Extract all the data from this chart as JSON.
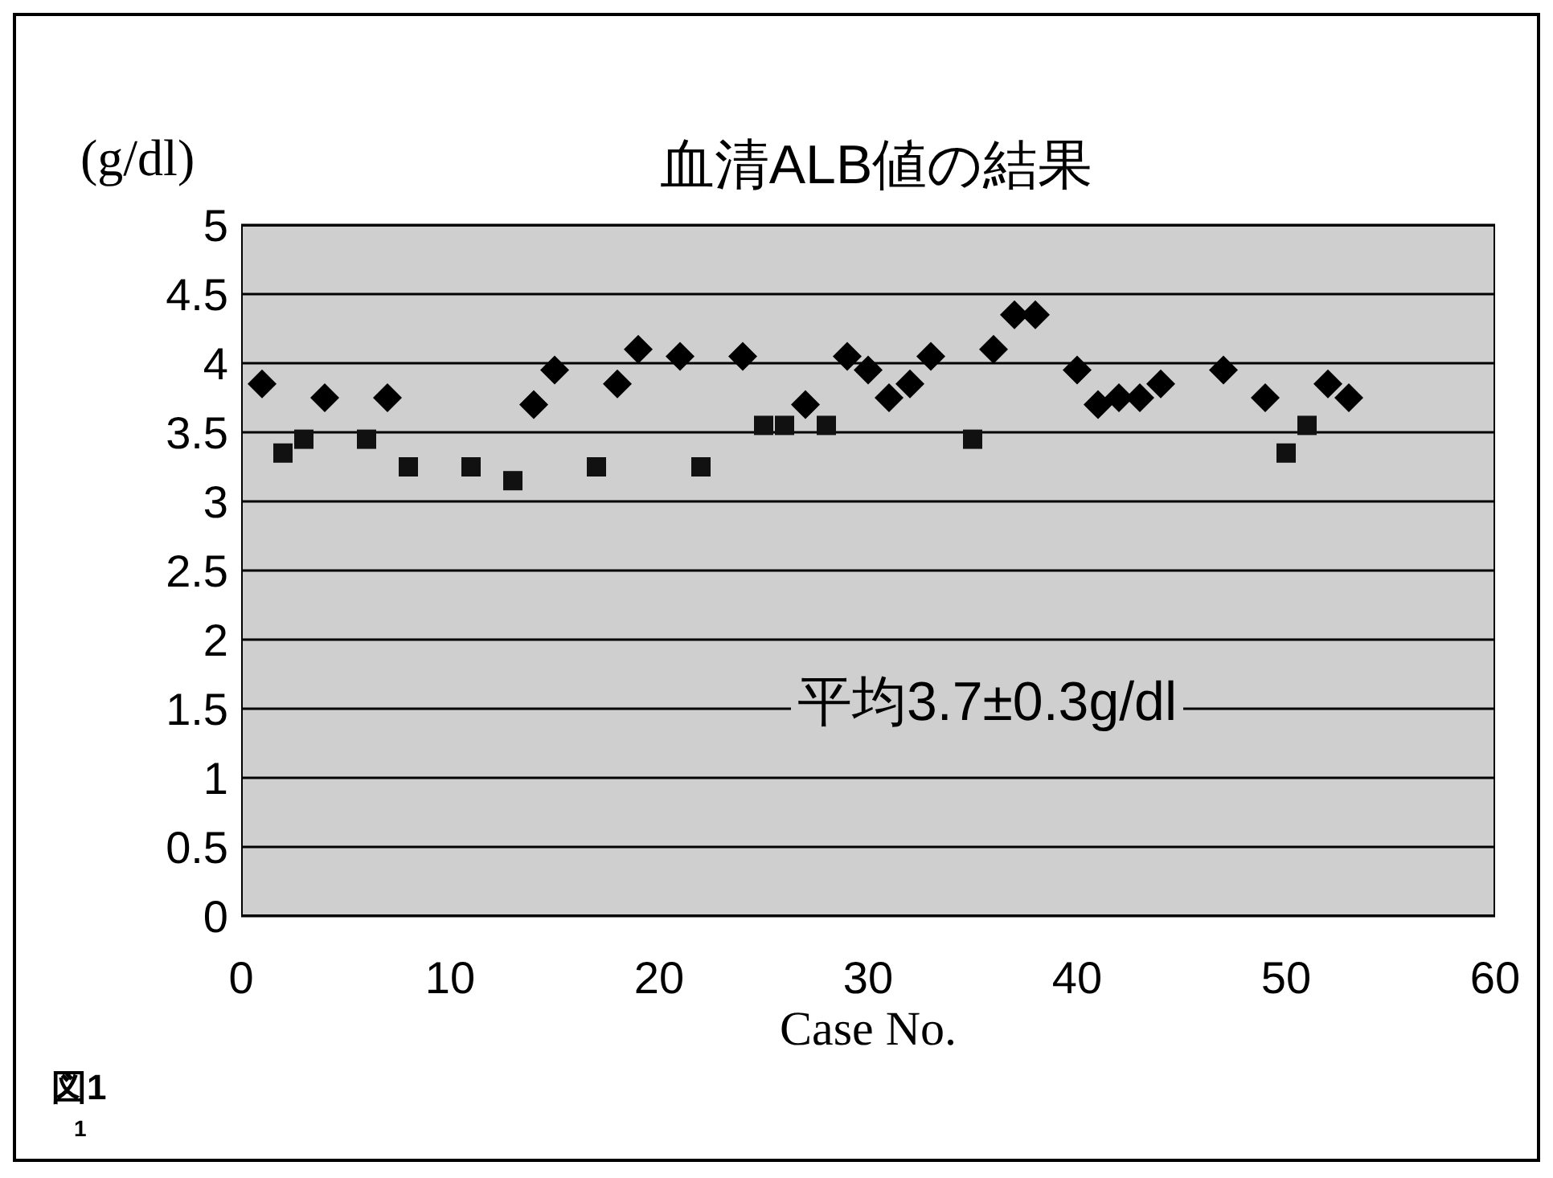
{
  "chart_data": {
    "type": "scatter",
    "title": "血清ALB値の結果",
    "xlabel": "Case No.",
    "ylabel": "(g/dl)",
    "annotations": [
      "平均3.7±0.3g/dl",
      "図1",
      "1"
    ],
    "xlim": [
      0,
      60
    ],
    "xticks": [
      0,
      10,
      20,
      30,
      40,
      50,
      60
    ],
    "ylim": [
      0,
      5
    ],
    "yticks": [
      0,
      0.5,
      1,
      1.5,
      2,
      2.5,
      3,
      3.5,
      4,
      4.5,
      5
    ],
    "grid": "y",
    "legend": false,
    "series": [
      {
        "color": "#000000",
        "marker": "diamond",
        "x": [
          1,
          4,
          7,
          14,
          15,
          18,
          19,
          21,
          24,
          27,
          29,
          30,
          31,
          32,
          33,
          36,
          37,
          38,
          40,
          41,
          42,
          43,
          44,
          47,
          49,
          52,
          53
        ],
        "values": [
          3.85,
          3.75,
          3.75,
          3.7,
          3.95,
          3.85,
          4.1,
          4.05,
          4.05,
          3.7,
          4.05,
          3.95,
          3.75,
          3.85,
          4.05,
          4.1,
          4.35,
          4.35,
          3.95,
          3.7,
          3.75,
          3.75,
          3.85,
          3.95,
          3.75,
          3.85,
          3.75
        ]
      },
      {
        "color": "#111111",
        "marker": "square",
        "x": [
          2,
          3,
          6,
          8,
          11,
          13,
          17,
          22,
          25,
          26,
          28,
          35,
          50,
          51
        ],
        "values": [
          3.35,
          3.45,
          3.45,
          3.25,
          3.25,
          3.15,
          3.25,
          3.25,
          3.55,
          3.55,
          3.55,
          3.45,
          3.35,
          3.55
        ]
      }
    ]
  }
}
